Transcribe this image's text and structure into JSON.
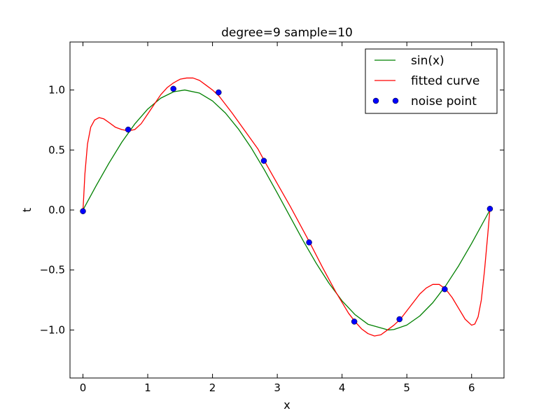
{
  "chart_data": {
    "type": "line",
    "title": "degree=9 sample=10",
    "xlabel": "x",
    "ylabel": "t",
    "xlim": [
      -0.2,
      6.5
    ],
    "ylim": [
      -1.4,
      1.4
    ],
    "xticks": [
      0,
      1,
      2,
      3,
      4,
      5,
      6
    ],
    "yticks": [
      -1.0,
      -0.5,
      0.0,
      0.5,
      1.0
    ],
    "xtick_labels": [
      "0",
      "1",
      "2",
      "3",
      "4",
      "5",
      "6"
    ],
    "ytick_labels": [
      "−1.0",
      "−0.5",
      "0.0",
      "0.5",
      "1.0"
    ],
    "grid": false,
    "legend_position": "top-right",
    "series": [
      {
        "name": "sin(x)",
        "style": "line",
        "color": "#008000",
        "x": [
          0.0,
          0.2,
          0.4,
          0.6,
          0.8,
          1.0,
          1.2,
          1.4,
          1.571,
          1.8,
          2.0,
          2.2,
          2.4,
          2.6,
          2.8,
          3.0,
          3.2,
          3.4,
          3.6,
          3.8,
          4.0,
          4.2,
          4.4,
          4.712,
          4.8,
          5.0,
          5.2,
          5.4,
          5.6,
          5.8,
          6.0,
          6.283
        ],
        "y": [
          0.0,
          0.199,
          0.389,
          0.565,
          0.717,
          0.841,
          0.932,
          0.985,
          1.0,
          0.974,
          0.909,
          0.808,
          0.675,
          0.516,
          0.335,
          0.141,
          -0.058,
          -0.256,
          -0.443,
          -0.612,
          -0.757,
          -0.872,
          -0.952,
          -1.0,
          -0.996,
          -0.959,
          -0.883,
          -0.773,
          -0.631,
          -0.465,
          -0.279,
          0.0
        ]
      },
      {
        "name": "fitted curve",
        "style": "line",
        "color": "#ff0000",
        "x": [
          0.0,
          0.03,
          0.07,
          0.12,
          0.18,
          0.25,
          0.32,
          0.4,
          0.5,
          0.6,
          0.7,
          0.8,
          0.9,
          1.0,
          1.1,
          1.2,
          1.3,
          1.4,
          1.5,
          1.6,
          1.7,
          1.8,
          1.9,
          2.0,
          2.1,
          2.3,
          2.5,
          2.7,
          2.8,
          3.0,
          3.2,
          3.5,
          3.7,
          3.9,
          4.1,
          4.2,
          4.3,
          4.4,
          4.5,
          4.6,
          4.7,
          4.8,
          4.9,
          5.0,
          5.1,
          5.2,
          5.3,
          5.4,
          5.5,
          5.6,
          5.7,
          5.8,
          5.9,
          6.0,
          6.05,
          6.1,
          6.15,
          6.2,
          6.25,
          6.283
        ],
        "y": [
          -0.01,
          0.3,
          0.55,
          0.69,
          0.75,
          0.77,
          0.76,
          0.73,
          0.69,
          0.67,
          0.66,
          0.67,
          0.72,
          0.8,
          0.88,
          0.96,
          1.02,
          1.06,
          1.09,
          1.1,
          1.1,
          1.08,
          1.04,
          1.0,
          0.95,
          0.81,
          0.66,
          0.51,
          0.41,
          0.22,
          0.03,
          -0.27,
          -0.48,
          -0.68,
          -0.86,
          -0.93,
          -0.99,
          -1.03,
          -1.05,
          -1.04,
          -1.0,
          -0.96,
          -0.91,
          -0.84,
          -0.77,
          -0.7,
          -0.65,
          -0.62,
          -0.62,
          -0.66,
          -0.73,
          -0.82,
          -0.91,
          -0.96,
          -0.95,
          -0.89,
          -0.75,
          -0.5,
          -0.2,
          0.01
        ]
      },
      {
        "name": "noise point",
        "style": "scatter",
        "color": "#0000ff",
        "x": [
          0.0,
          0.698,
          1.396,
          2.094,
          2.793,
          3.491,
          4.189,
          4.887,
          5.585,
          6.283
        ],
        "y": [
          -0.01,
          0.67,
          1.01,
          0.98,
          0.41,
          -0.27,
          -0.93,
          -0.91,
          -0.66,
          0.01
        ]
      }
    ]
  }
}
